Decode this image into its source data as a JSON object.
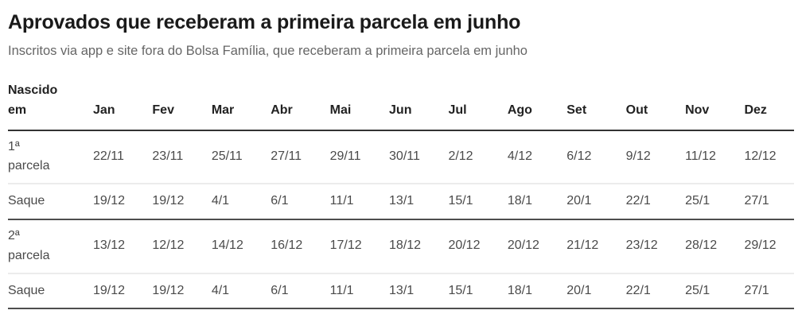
{
  "header": {
    "title": "Aprovados que receberam a primeira parcela em junho",
    "subtitle": "Inscritos via app e site fora do Bolsa Família, que receberam a primeira parcela em junho"
  },
  "chart_data": {
    "type": "table",
    "columns": [
      "Nascido em",
      "Jan",
      "Fev",
      "Mar",
      "Abr",
      "Mai",
      "Jun",
      "Jul",
      "Ago",
      "Set",
      "Out",
      "Nov",
      "Dez"
    ],
    "rows": [
      {
        "label": "1ª parcela",
        "values": [
          "22/11",
          "23/11",
          "25/11",
          "27/11",
          "29/11",
          "30/11",
          "2/12",
          "4/12",
          "6/12",
          "9/12",
          "11/12",
          "12/12"
        ]
      },
      {
        "label": "Saque",
        "values": [
          "19/12",
          "19/12",
          "4/1",
          "6/1",
          "11/1",
          "13/1",
          "15/1",
          "18/1",
          "20/1",
          "22/1",
          "25/1",
          "27/1"
        ]
      },
      {
        "label": "2ª parcela",
        "values": [
          "13/12",
          "12/12",
          "14/12",
          "16/12",
          "17/12",
          "18/12",
          "20/12",
          "20/12",
          "21/12",
          "23/12",
          "28/12",
          "29/12"
        ]
      },
      {
        "label": "Saque",
        "values": [
          "19/12",
          "19/12",
          "4/1",
          "6/1",
          "11/1",
          "13/1",
          "15/1",
          "18/1",
          "20/1",
          "22/1",
          "25/1",
          "27/1"
        ]
      }
    ]
  },
  "colors": {
    "title_text": "#1a1a1a",
    "subtitle_text": "#666666",
    "header_text": "#222222",
    "cell_text": "#4a4a4a",
    "divider_dark": "#333333",
    "divider_light": "#ececec"
  }
}
